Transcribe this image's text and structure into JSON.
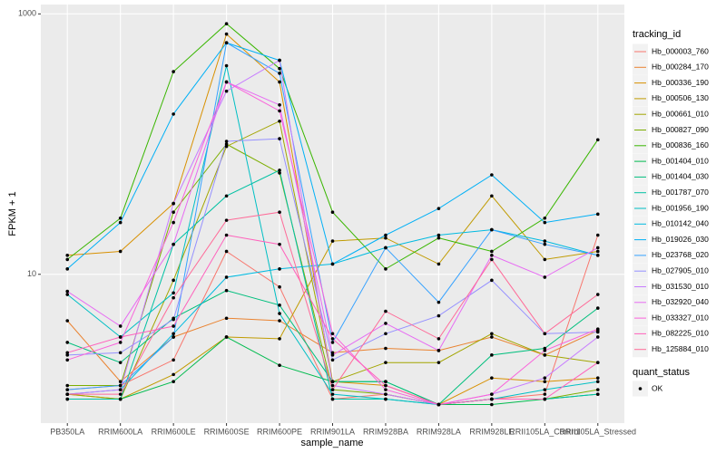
{
  "chart_data": {
    "type": "line",
    "x_label": "sample_name",
    "y_label": "FPKM + 1",
    "categories": [
      "PB350LA",
      "RRIM600LA",
      "RRIM600LE",
      "RRIM600SE",
      "RRIM600PE",
      "RRIM901LA",
      "RRIM928BA",
      "RRIM928LA",
      "RRIM928LE",
      "RRII105LA_Control",
      "RRII105LA_Stressed"
    ],
    "yscale": "log",
    "ylim": [
      0.72,
      1180
    ],
    "yticks": [
      10,
      1000
    ],
    "grid": true,
    "legend_title": "tracking_id",
    "legend_position": "right",
    "shape_legend_title": "quant_status",
    "shape_legend_items": [
      "OK"
    ],
    "point_color": "#000000",
    "series": [
      {
        "name": "Hb_000003_760",
        "color": "#F8766D",
        "values": [
          1.3,
          1.4,
          2.2,
          15,
          8,
          1.1,
          1.2,
          1.0,
          1.1,
          1.2,
          20
        ]
      },
      {
        "name": "Hb_000284_170",
        "color": "#EA8331",
        "values": [
          4.4,
          1.5,
          3.3,
          4.6,
          4.4,
          2.5,
          2.7,
          2.6,
          3.3,
          2.4,
          3.7
        ]
      },
      {
        "name": "Hb_000336_190",
        "color": "#D89000",
        "values": [
          14,
          15,
          35,
          700,
          300,
          1.5,
          1.4,
          1.0,
          1.6,
          1.5,
          1.6
        ]
      },
      {
        "name": "Hb_000506_130",
        "color": "#C09B00",
        "values": [
          1.2,
          1.1,
          1.7,
          3.3,
          3.2,
          18,
          19,
          12,
          40,
          13,
          15
        ]
      },
      {
        "name": "Hb_000661_010",
        "color": "#A3A500",
        "values": [
          1.2,
          1.1,
          9,
          96,
          150,
          1.5,
          2.1,
          2.1,
          3.5,
          2.4,
          2.1
        ]
      },
      {
        "name": "Hb_000827_090",
        "color": "#7CAE00",
        "values": [
          1.4,
          1.4,
          30,
          100,
          60,
          1.3,
          1.2,
          1.0,
          1.1,
          1.1,
          1.3
        ]
      },
      {
        "name": "Hb_000836_160",
        "color": "#39B600",
        "values": [
          13,
          27,
          360,
          840,
          380,
          30,
          11,
          19,
          15,
          27,
          108
        ]
      },
      {
        "name": "Hb_001404_010",
        "color": "#00BB4E",
        "values": [
          1.1,
          1.1,
          1.5,
          3.3,
          2.0,
          1.5,
          1.5,
          1.0,
          1.0,
          1.1,
          1.2
        ]
      },
      {
        "name": "Hb_001404_030",
        "color": "#00BF7D",
        "values": [
          3.0,
          2.1,
          4.6,
          7.5,
          5.8,
          1.5,
          1.5,
          1.0,
          2.4,
          2.7,
          5.5
        ]
      },
      {
        "name": "Hb_001787_070",
        "color": "#00C1A3",
        "values": [
          1.1,
          1.1,
          17,
          40,
          63,
          1.1,
          1.1,
          1.0,
          1.1,
          1.1,
          1.2
        ]
      },
      {
        "name": "Hb_001956_190",
        "color": "#00BFC4",
        "values": [
          7,
          3.3,
          7.2,
          400,
          5.0,
          1.2,
          1.1,
          1.0,
          1.1,
          1.3,
          1.5
        ]
      },
      {
        "name": "Hb_010142_040",
        "color": "#00BAE0",
        "values": [
          1.2,
          1.3,
          3.5,
          9.5,
          11,
          12,
          16,
          20,
          22,
          18,
          14
        ]
      },
      {
        "name": "Hb_019026_030",
        "color": "#00B0F6",
        "values": [
          11,
          25,
          170,
          600,
          440,
          12,
          20,
          32,
          58,
          25,
          29
        ]
      },
      {
        "name": "Hb_023768_020",
        "color": "#35A2FF",
        "values": [
          1.3,
          1.4,
          3.3,
          600,
          350,
          3.0,
          16,
          6.1,
          22,
          17,
          14
        ]
      },
      {
        "name": "Hb_027905_010",
        "color": "#9590FF",
        "values": [
          2.4,
          2.5,
          4.5,
          105,
          110,
          2.2,
          3.5,
          4.8,
          9,
          3.5,
          3.6
        ]
      },
      {
        "name": "Hb_031530_010",
        "color": "#C77CFF",
        "values": [
          1.2,
          1.3,
          35,
          255,
          440,
          1.4,
          1.2,
          1.0,
          1.2,
          1.6,
          3.3
        ]
      },
      {
        "name": "Hb_032920_040",
        "color": "#E76BF3",
        "values": [
          7.4,
          4.0,
          17,
          300,
          200,
          2.4,
          4.2,
          2.6,
          14,
          9.5,
          16
        ]
      },
      {
        "name": "Hb_033327_010",
        "color": "#FA62DB",
        "values": [
          2.2,
          3.0,
          25,
          300,
          180,
          3.5,
          1.3,
          1.0,
          1.2,
          2.6,
          3.8
        ]
      },
      {
        "name": "Hb_082225_010",
        "color": "#FF62BC",
        "values": [
          2.5,
          3.3,
          4.0,
          20,
          17,
          3.2,
          1.4,
          1.0,
          1.1,
          1.1,
          2.1
        ]
      },
      {
        "name": "Hb_125884_010",
        "color": "#FF6A98",
        "values": [
          1.2,
          1.2,
          6.6,
          26,
          30,
          1.3,
          5.2,
          3.2,
          13,
          3.5,
          7
        ]
      }
    ]
  }
}
